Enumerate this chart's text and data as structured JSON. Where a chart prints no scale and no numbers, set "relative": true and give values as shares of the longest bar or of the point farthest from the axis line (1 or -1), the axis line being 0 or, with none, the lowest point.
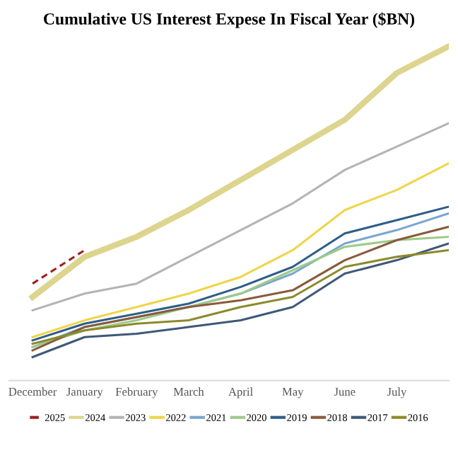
{
  "chart_data": {
    "type": "line",
    "title": "Cumulative US Interest Expese In Fiscal Year ($BN)",
    "relative": true,
    "legend": "bottom",
    "categories": [
      "December",
      "January",
      "February",
      "March",
      "April",
      "May",
      "June",
      "July",
      null
    ],
    "series": [
      {
        "name": "2025",
        "color": "#9e1f1f",
        "line_style": "dashed",
        "values": [
          0.29,
          0.39,
          null,
          null,
          null,
          null,
          null,
          null,
          null
        ]
      },
      {
        "name": "2024",
        "color": "#ddd48e",
        "values": [
          0.25,
          0.37,
          0.43,
          0.51,
          0.6,
          0.69,
          0.78,
          0.92,
          1.0
        ]
      },
      {
        "name": "2023",
        "color": "#b4b4b4",
        "values": [
          0.21,
          0.26,
          0.29,
          0.37,
          0.45,
          0.53,
          0.63,
          0.7,
          0.77
        ]
      },
      {
        "name": "2022",
        "color": "#f0d54a",
        "values": [
          0.13,
          0.18,
          0.22,
          0.26,
          0.31,
          0.39,
          0.51,
          0.57,
          0.65
        ]
      },
      {
        "name": "2021",
        "color": "#7aa6cf",
        "values": [
          0.1,
          0.16,
          0.19,
          0.22,
          0.26,
          0.32,
          0.41,
          0.45,
          0.5
        ]
      },
      {
        "name": "2020",
        "color": "#9dcb88",
        "values": [
          0.1,
          0.15,
          0.18,
          0.22,
          0.26,
          0.33,
          0.4,
          0.42,
          0.43
        ]
      },
      {
        "name": "2019",
        "color": "#2f5d87",
        "values": [
          0.12,
          0.17,
          0.2,
          0.23,
          0.28,
          0.34,
          0.44,
          0.48,
          0.52
        ]
      },
      {
        "name": "2018",
        "color": "#8a5a3c",
        "values": [
          0.09,
          0.16,
          0.19,
          0.22,
          0.24,
          0.27,
          0.36,
          0.42,
          0.46
        ]
      },
      {
        "name": "2017",
        "color": "#3e5878",
        "values": [
          0.07,
          0.13,
          0.14,
          0.16,
          0.18,
          0.22,
          0.32,
          0.36,
          0.41
        ]
      },
      {
        "name": "2016",
        "color": "#8c8a2c",
        "values": [
          0.11,
          0.15,
          0.17,
          0.18,
          0.22,
          0.25,
          0.34,
          0.37,
          0.39
        ]
      }
    ]
  }
}
